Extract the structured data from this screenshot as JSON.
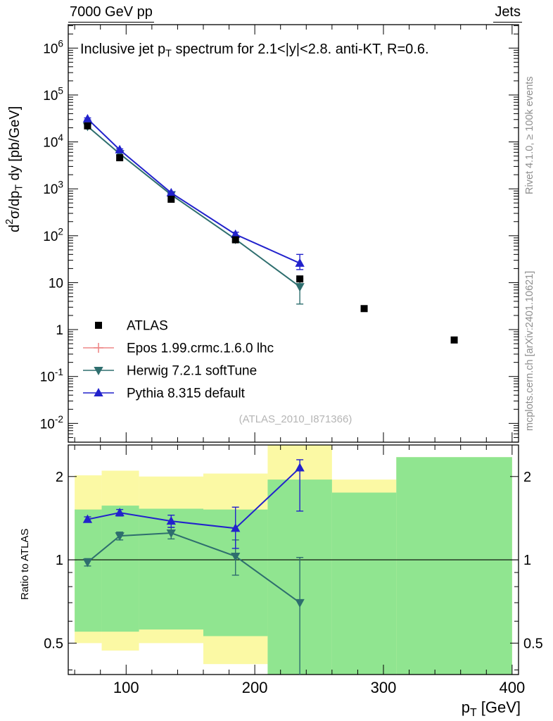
{
  "header": {
    "left": "7000 GeV pp",
    "right": "Jets"
  },
  "side_notes": {
    "top": "Rivet 4.1.0, ≥ 100k events",
    "bottom": "mcplots.cern.ch [arXiv:2401.10621]"
  },
  "watermark": "(ATLAS_2010_I871366)",
  "colors": {
    "atlas": "#000000",
    "epos": "#ee8888",
    "herwig": "#2e6e6e",
    "pythia": "#2222cc",
    "band_yellow": "#fbf9a4",
    "band_green": "#90e590",
    "side_note": "#8e8e8e",
    "watermark": "#b5b5b5",
    "axis": "#000000"
  },
  "chart_data": [
    {
      "type": "scatter",
      "title": "Inclusive jet p_{T} spectrum for 2.1<|y|<2.8.  anti-KT, R=0.6.",
      "ylabel": "d^{2}σ/dp_{T} dy [pb/GeV]",
      "xlabel": "p_{T} [GeV]",
      "xlim": [
        55,
        405
      ],
      "ylim": [
        0.00398,
        3160000
      ],
      "ylog": true,
      "grid": false,
      "legend_position": "inside-bottom-left",
      "series": [
        {
          "name": "ATLAS",
          "marker": "square",
          "color_key": "atlas",
          "x": [
            70,
            95,
            135,
            185,
            235,
            285,
            355
          ],
          "y": [
            22000,
            4600,
            600,
            82,
            12,
            2.8,
            0.6
          ]
        },
        {
          "name": "Epos 1.99.crmc.1.6.0 lhc",
          "marker": "open-cross",
          "color_key": "epos",
          "x": [],
          "y": []
        },
        {
          "name": "Herwig 7.2.1 softTune",
          "marker": "triangle-down",
          "color_key": "herwig",
          "x": [
            70,
            95,
            135,
            185,
            235
          ],
          "y": [
            21500,
            5600,
            750,
            84,
            8.2
          ],
          "yerr_lo": [
            1000,
            250,
            35,
            9,
            4.7
          ],
          "yerr_hi": [
            1000,
            250,
            35,
            9,
            3.8
          ]
        },
        {
          "name": "Pythia 8.315 default",
          "marker": "triangle-up",
          "color_key": "pythia",
          "x": [
            70,
            95,
            135,
            185,
            235
          ],
          "y": [
            31000,
            6800,
            820,
            107,
            26
          ],
          "yerr_lo": [
            1500,
            300,
            40,
            12,
            7
          ],
          "yerr_hi": [
            1500,
            300,
            40,
            12,
            14
          ]
        }
      ]
    },
    {
      "type": "line",
      "title": "",
      "ylabel": "Ratio to ATLAS",
      "xlabel": "p_{T} [GeV]",
      "xlim": [
        55,
        405
      ],
      "ylim": [
        0.385,
        2.6
      ],
      "ylog": true,
      "yticks": [
        0.5,
        1,
        2
      ],
      "xticks": [
        100,
        200,
        300,
        400
      ],
      "reference_line": 1,
      "bands": {
        "yellow": [
          {
            "x1": 60,
            "x2": 81,
            "lo": 0.5,
            "hi": 2.02
          },
          {
            "x1": 81,
            "x2": 110,
            "lo": 0.47,
            "hi": 2.1
          },
          {
            "x1": 110,
            "x2": 160,
            "lo": 0.5,
            "hi": 2.0
          },
          {
            "x1": 160,
            "x2": 210,
            "lo": 0.42,
            "hi": 2.05
          },
          {
            "x1": 210,
            "x2": 260,
            "lo": 0.385,
            "hi": 2.6
          },
          {
            "x1": 260,
            "x2": 310,
            "lo": 0.385,
            "hi": 1.95
          },
          {
            "x1": 310,
            "x2": 400,
            "lo": 0.385,
            "hi": 2.35
          }
        ],
        "green": [
          {
            "x1": 60,
            "x2": 81,
            "lo": 0.55,
            "hi": 1.52
          },
          {
            "x1": 81,
            "x2": 110,
            "lo": 0.55,
            "hi": 1.57
          },
          {
            "x1": 110,
            "x2": 160,
            "lo": 0.56,
            "hi": 1.53
          },
          {
            "x1": 160,
            "x2": 210,
            "lo": 0.53,
            "hi": 1.52
          },
          {
            "x1": 210,
            "x2": 260,
            "lo": 0.385,
            "hi": 1.95
          },
          {
            "x1": 260,
            "x2": 310,
            "lo": 0.385,
            "hi": 1.75
          },
          {
            "x1": 310,
            "x2": 400,
            "lo": 0.385,
            "hi": 2.35
          }
        ]
      },
      "series": [
        {
          "name": "Herwig 7.2.1 softTune",
          "marker": "triangle-down",
          "color_key": "herwig",
          "x": [
            70,
            95,
            135,
            185,
            235
          ],
          "y": [
            0.98,
            1.22,
            1.25,
            1.03,
            0.7
          ],
          "yerr_lo": [
            0.03,
            0.04,
            0.06,
            0.15,
            0.33
          ],
          "yerr_hi": [
            0.03,
            0.04,
            0.06,
            0.15,
            0.32
          ]
        },
        {
          "name": "Pythia 8.315 default",
          "marker": "triangle-up",
          "color_key": "pythia",
          "x": [
            70,
            95,
            135,
            185,
            235
          ],
          "y": [
            1.4,
            1.48,
            1.38,
            1.3,
            2.15
          ],
          "yerr_lo": [
            0.03,
            0.04,
            0.07,
            0.2,
            0.65
          ],
          "yerr_hi": [
            0.03,
            0.04,
            0.07,
            0.25,
            0.15
          ]
        }
      ]
    }
  ]
}
